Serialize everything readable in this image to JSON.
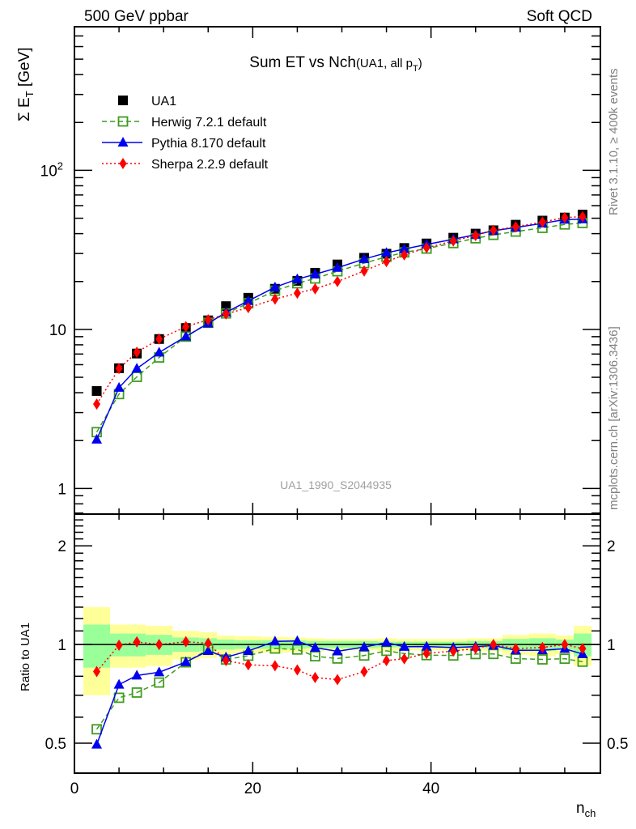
{
  "header": {
    "left": "500 GeV ppbar",
    "right": "Soft QCD"
  },
  "side_texts": {
    "rivet": "Rivet 3.1.10, ≥ 400k events",
    "mcplots": "mcplots.cern.ch [arXiv:1306.3436]"
  },
  "watermark": "UA1_1990_S2044935",
  "chart_data": [
    {
      "type": "scatter",
      "title": "Sum ET vs Nch",
      "title_suffix": "(UA1, all p",
      "title_suffix_sub": "T",
      "title_suffix_end": ")",
      "ylabel": "Σ E",
      "ylabel_sub": "T",
      "ylabel_unit": " [GeV]",
      "yscale": "log",
      "ylim": [
        0.69,
        800
      ],
      "xlim": [
        0,
        59
      ],
      "ytick_labels": [
        {
          "value": 1,
          "label": "1"
        },
        {
          "value": 10,
          "label": "10"
        },
        {
          "value": 100,
          "label": "10",
          "sup": "2"
        }
      ],
      "legend_position": "top-left",
      "x": [
        2.5,
        5,
        7,
        9.5,
        12.5,
        15,
        17,
        19.5,
        22.5,
        25,
        27,
        29.5,
        32.5,
        35,
        37,
        39.5,
        42.5,
        45,
        47,
        49.5,
        52.5,
        55,
        57
      ],
      "bin_edges": [
        1,
        4,
        6,
        8,
        11,
        14,
        16,
        18,
        21,
        24,
        26,
        28,
        31,
        34,
        36,
        38,
        41,
        44,
        46,
        48,
        51,
        54,
        56,
        58
      ],
      "series": [
        {
          "name": "UA1",
          "color": "#000000",
          "marker": "square-filled",
          "line": "none",
          "values": [
            4.1,
            5.7,
            7.05,
            8.7,
            10.2,
            11.4,
            14.0,
            15.8,
            18.0,
            20.2,
            22.7,
            25.6,
            28.2,
            29.9,
            32.5,
            34.7,
            37.7,
            40.0,
            42.0,
            45.5,
            48.3,
            50.5,
            52.7
          ]
        },
        {
          "name": "Herwig 7.2.1 default",
          "color": "#3f9c1f",
          "marker": "square-open",
          "line": "dashed",
          "values": [
            2.26,
            3.92,
            5.03,
            6.66,
            9.0,
            11.0,
            12.6,
            14.6,
            17.5,
            19.5,
            20.9,
            23.2,
            26.1,
            28.6,
            30.5,
            32.2,
            34.9,
            37.4,
            39.3,
            41.2,
            43.5,
            45.7,
            46.7
          ]
        },
        {
          "name": "Pythia 8.170 default",
          "color": "#0000ee",
          "marker": "triangle",
          "line": "solid",
          "values": [
            2.03,
            4.3,
            5.67,
            7.16,
            9.02,
            10.9,
            12.8,
            15.1,
            18.4,
            20.7,
            22.2,
            24.4,
            27.7,
            30.3,
            32.0,
            34.2,
            36.9,
            39.4,
            41.7,
            43.7,
            46.4,
            49.0,
            49.3
          ]
        },
        {
          "name": "Sherpa 2.2.9 default",
          "color": "#ff0000",
          "marker": "diamond",
          "line": "dotted",
          "values": [
            3.39,
            5.67,
            7.18,
            8.7,
            10.4,
            11.5,
            12.5,
            13.7,
            15.5,
            16.9,
            18.0,
            20.0,
            23.3,
            26.7,
            29.4,
            32.6,
            36.0,
            38.9,
            42.0,
            44.2,
            47.3,
            50.5,
            51.2
          ]
        }
      ]
    },
    {
      "type": "scatter",
      "ylabel": "Ratio to UA1",
      "xlabel": "n",
      "xlabel_sub": "ch",
      "yscale": "log",
      "ylim": [
        0.405,
        2.5
      ],
      "xlim": [
        0,
        59
      ],
      "xtick_labels": [
        "0",
        "20",
        "40"
      ],
      "ytick_labels": [
        {
          "value": 0.5,
          "label": "0.5"
        },
        {
          "value": 1,
          "label": "1"
        },
        {
          "value": 2,
          "label": "2"
        }
      ],
      "reference": "UA1",
      "stat_band_color": "#99ff99",
      "total_band_color": "#ffff99",
      "stat_uncertainty": [
        0.15,
        0.08,
        0.08,
        0.07,
        0.05,
        0.045,
        0.035,
        0.03,
        0.03,
        0.03,
        0.025,
        0.025,
        0.025,
        0.02,
        0.02,
        0.02,
        0.02,
        0.025,
        0.025,
        0.04,
        0.045,
        0.035,
        0.08
      ],
      "total_uncertainty": [
        0.3,
        0.15,
        0.15,
        0.14,
        0.1,
        0.09,
        0.065,
        0.06,
        0.055,
        0.05,
        0.045,
        0.04,
        0.04,
        0.045,
        0.04,
        0.04,
        0.04,
        0.045,
        0.045,
        0.07,
        0.08,
        0.065,
        0.14
      ]
    }
  ]
}
